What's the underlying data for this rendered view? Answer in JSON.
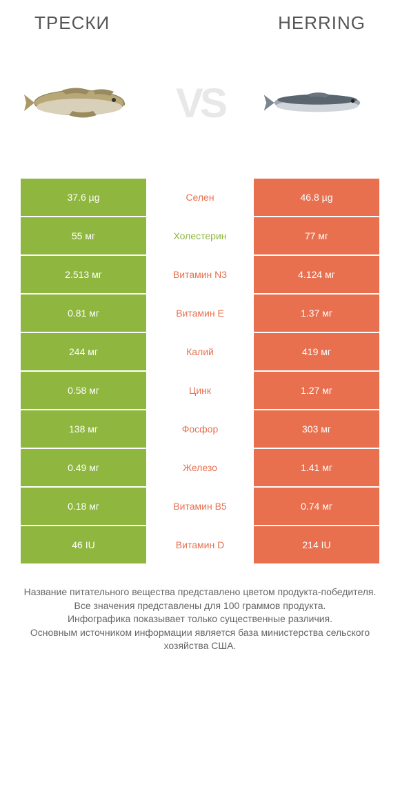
{
  "titles": {
    "left": "ТРЕСКИ",
    "right": "HERRING",
    "vs": "VS"
  },
  "colors": {
    "left_bar": "#8fb63f",
    "right_bar": "#e8704f",
    "mid_text_left_win": "#8fb63f",
    "mid_text_right_win": "#e8704f",
    "background": "#ffffff",
    "title_color": "#555555",
    "footer_color": "#666666",
    "vs_color": "#e8e8e8"
  },
  "fish_images": {
    "left_fish": "cod",
    "right_fish": "herring"
  },
  "comparison": {
    "rows": [
      {
        "left": "37.6 µg",
        "label": "Селен",
        "right": "46.8 µg",
        "winner": "right"
      },
      {
        "left": "55 мг",
        "label": "Холестерин",
        "right": "77 мг",
        "winner": "left"
      },
      {
        "left": "2.513 мг",
        "label": "Витамин N3",
        "right": "4.124 мг",
        "winner": "right"
      },
      {
        "left": "0.81 мг",
        "label": "Витамин E",
        "right": "1.37 мг",
        "winner": "right"
      },
      {
        "left": "244 мг",
        "label": "Калий",
        "right": "419 мг",
        "winner": "right"
      },
      {
        "left": "0.58 мг",
        "label": "Цинк",
        "right": "1.27 мг",
        "winner": "right"
      },
      {
        "left": "138 мг",
        "label": "Фосфор",
        "right": "303 мг",
        "winner": "right"
      },
      {
        "left": "0.49 мг",
        "label": "Железо",
        "right": "1.41 мг",
        "winner": "right"
      },
      {
        "left": "0.18 мг",
        "label": "Витамин B5",
        "right": "0.74 мг",
        "winner": "right"
      },
      {
        "left": "46 IU",
        "label": "Витамин D",
        "right": "214 IU",
        "winner": "right"
      }
    ]
  },
  "footer_lines": [
    "Название питательного вещества представлено цветом продукта-победителя.",
    "Все значения представлены для 100 граммов продукта.",
    "Инфографика показывает только существенные различия.",
    "Основным источником информации является база министерства сельского хозяйства США."
  ]
}
